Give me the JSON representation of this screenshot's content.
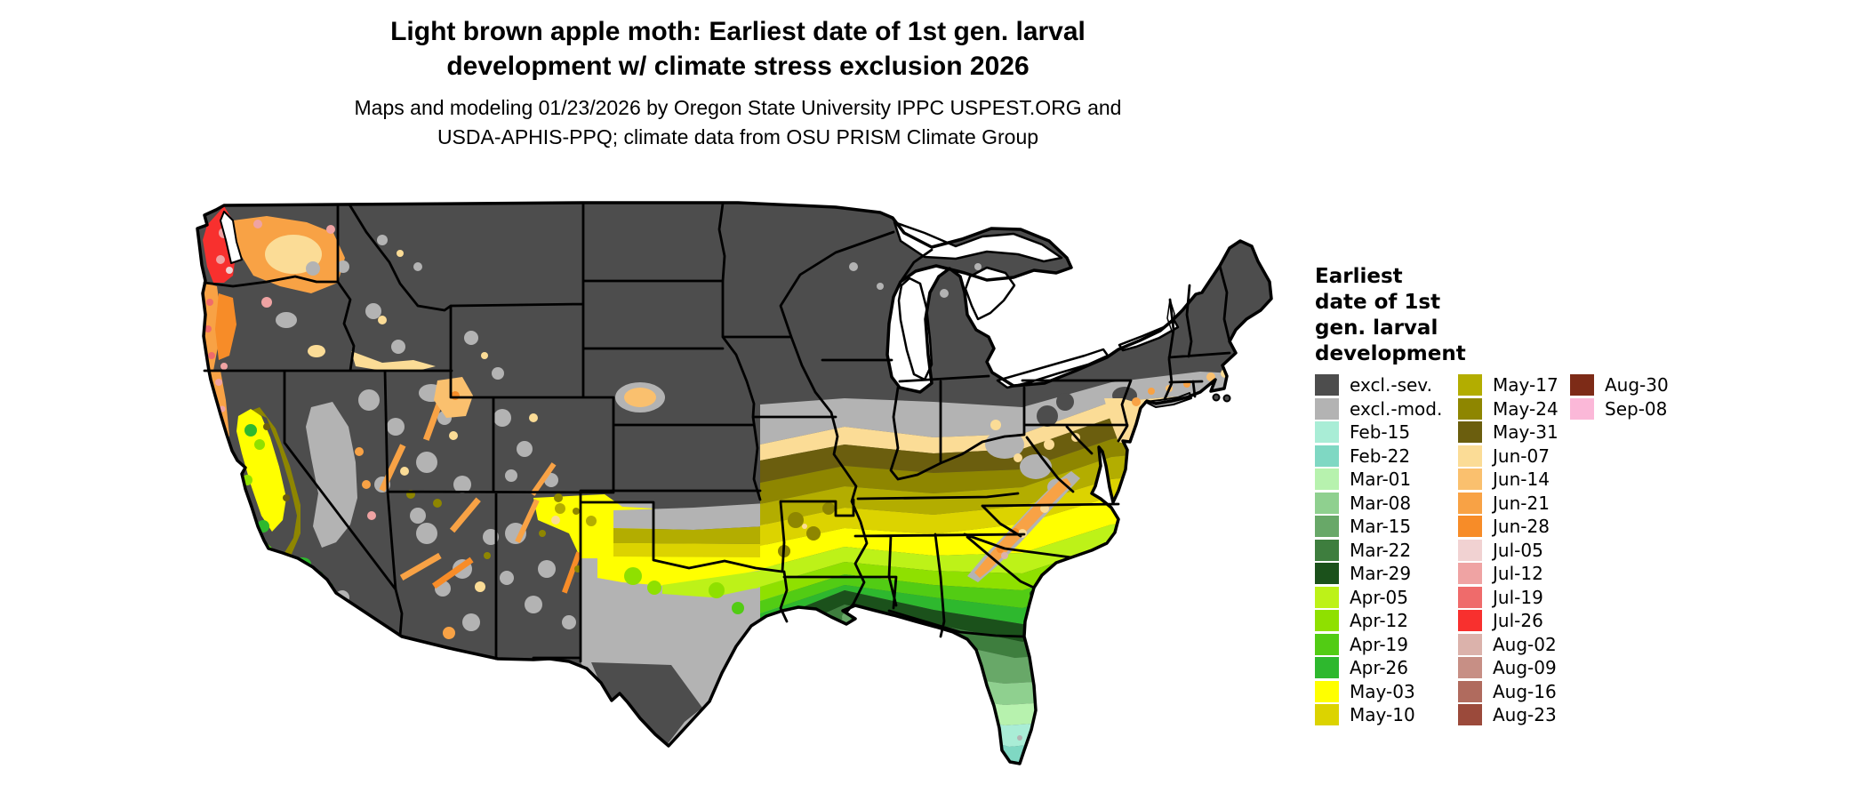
{
  "header": {
    "title_line1": "Light brown apple moth: Earliest date of 1st gen. larval",
    "title_line2": "development w/ climate stress exclusion 2026",
    "subtitle_line1": "Maps and modeling 01/23/2026 by Oregon State University IPPC USPEST.ORG and",
    "subtitle_line2": "USDA-APHIS-PPQ; climate data from OSU PRISM Climate Group"
  },
  "legend": {
    "title_lines": [
      "Earliest",
      "date of 1st",
      "gen. larval",
      "development"
    ],
    "columns": [
      {
        "entries": [
          {
            "label": "excl.-sev.",
            "color_key": "exclSev"
          },
          {
            "label": "excl.-mod.",
            "color_key": "exclMod"
          },
          {
            "label": "Feb-15",
            "color_key": "feb15"
          },
          {
            "label": "Feb-22",
            "color_key": "feb22"
          },
          {
            "label": "Mar-01",
            "color_key": "mar01"
          },
          {
            "label": "Mar-08",
            "color_key": "mar08"
          },
          {
            "label": "Mar-15",
            "color_key": "mar15"
          },
          {
            "label": "Mar-22",
            "color_key": "mar22"
          },
          {
            "label": "Mar-29",
            "color_key": "mar29"
          },
          {
            "label": "Apr-05",
            "color_key": "apr05"
          },
          {
            "label": "Apr-12",
            "color_key": "apr12"
          },
          {
            "label": "Apr-19",
            "color_key": "apr19"
          },
          {
            "label": "Apr-26",
            "color_key": "apr26"
          },
          {
            "label": "May-03",
            "color_key": "may03"
          },
          {
            "label": "May-10",
            "color_key": "may10"
          }
        ]
      },
      {
        "entries": [
          {
            "label": "May-17",
            "color_key": "may17"
          },
          {
            "label": "May-24",
            "color_key": "may24"
          },
          {
            "label": "May-31",
            "color_key": "may31"
          },
          {
            "label": "Jun-07",
            "color_key": "jun07"
          },
          {
            "label": "Jun-14",
            "color_key": "jun14"
          },
          {
            "label": "Jun-21",
            "color_key": "jun21"
          },
          {
            "label": "Jun-28",
            "color_key": "jun28"
          },
          {
            "label": "Jul-05",
            "color_key": "jul05"
          },
          {
            "label": "Jul-12",
            "color_key": "jul12"
          },
          {
            "label": "Jul-19",
            "color_key": "jul19"
          },
          {
            "label": "Jul-26",
            "color_key": "jul26"
          },
          {
            "label": "Aug-02",
            "color_key": "aug02"
          },
          {
            "label": "Aug-09",
            "color_key": "aug09"
          },
          {
            "label": "Aug-16",
            "color_key": "aug16"
          },
          {
            "label": "Aug-23",
            "color_key": "aug23"
          }
        ]
      },
      {
        "entries": [
          {
            "label": "Aug-30",
            "color_key": "aug30"
          },
          {
            "label": "Sep-08",
            "color_key": "sep08"
          }
        ]
      }
    ]
  },
  "palette": {
    "exclSev": "#4D4D4D",
    "exclMod": "#B3B3B3",
    "feb15": "#A9EDD6",
    "feb22": "#7FD8C3",
    "mar01": "#B7F2AE",
    "mar08": "#8FD08F",
    "mar15": "#68A868",
    "mar22": "#3E7E3E",
    "mar29": "#1B511B",
    "apr05": "#BDF218",
    "apr12": "#8FE000",
    "apr19": "#52CC14",
    "apr26": "#2EB82E",
    "may03": "#FFFF00",
    "may10": "#DCD300",
    "may17": "#B3AD00",
    "may24": "#8E8600",
    "may31": "#6B5E0E",
    "jun07": "#FBDC96",
    "jun14": "#FAC06E",
    "jun21": "#F8A245",
    "jun28": "#F78C28",
    "jul05": "#F1D2D2",
    "jul12": "#EFA3A3",
    "jul19": "#EF6B6B",
    "jul26": "#F8302E",
    "aug02": "#DBB2AB",
    "aug09": "#C78F85",
    "aug16": "#B06B5E",
    "aug23": "#9B4A3B",
    "aug30": "#7D2B17",
    "sep08": "#FBB8D8",
    "border": "#000000",
    "water": "#FFFFFF"
  },
  "map": {
    "region": "Contiguous United States",
    "kind": "raster choropleth of earliest larval development date"
  }
}
